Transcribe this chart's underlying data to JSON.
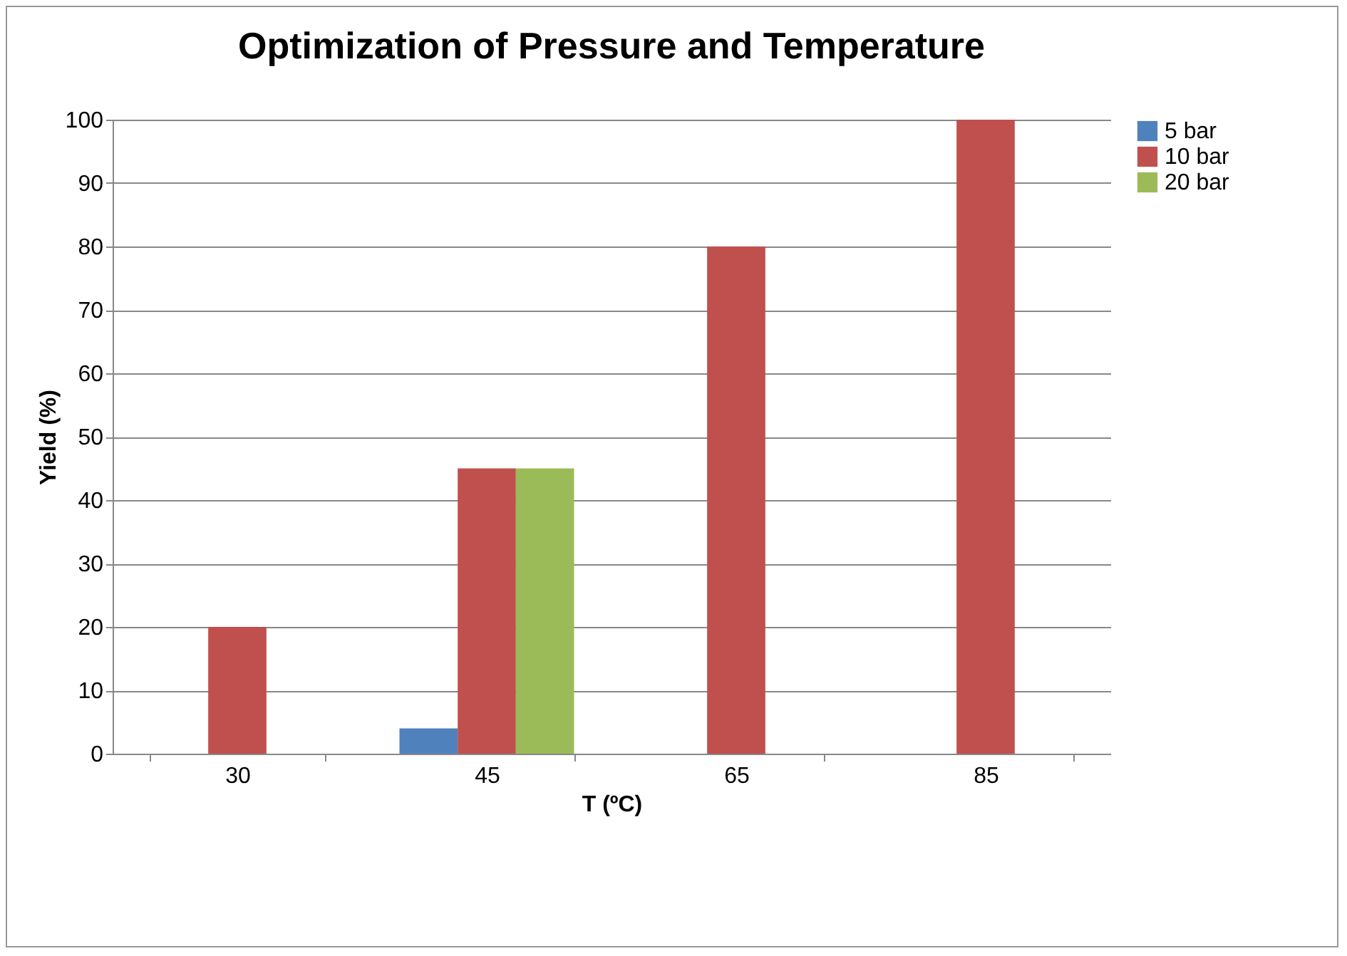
{
  "chart_data": {
    "type": "bar",
    "title": "Optimization of Pressure and Temperature",
    "xlabel": "T (ºC)",
    "ylabel": "Yield (%)",
    "categories": [
      "30",
      "45",
      "65",
      "85"
    ],
    "series": [
      {
        "name": "5 bar",
        "color": "#4f81bd",
        "values": [
          null,
          4,
          null,
          null
        ]
      },
      {
        "name": "10 bar",
        "color": "#c0504d",
        "values": [
          20,
          45,
          80,
          100
        ]
      },
      {
        "name": "20 bar",
        "color": "#9bbb59",
        "values": [
          null,
          45,
          null,
          null
        ]
      }
    ],
    "ylim": [
      0,
      100
    ],
    "yticks": [
      0,
      10,
      20,
      30,
      40,
      50,
      60,
      70,
      80,
      90,
      100
    ],
    "grid": "y",
    "legend": "right"
  }
}
